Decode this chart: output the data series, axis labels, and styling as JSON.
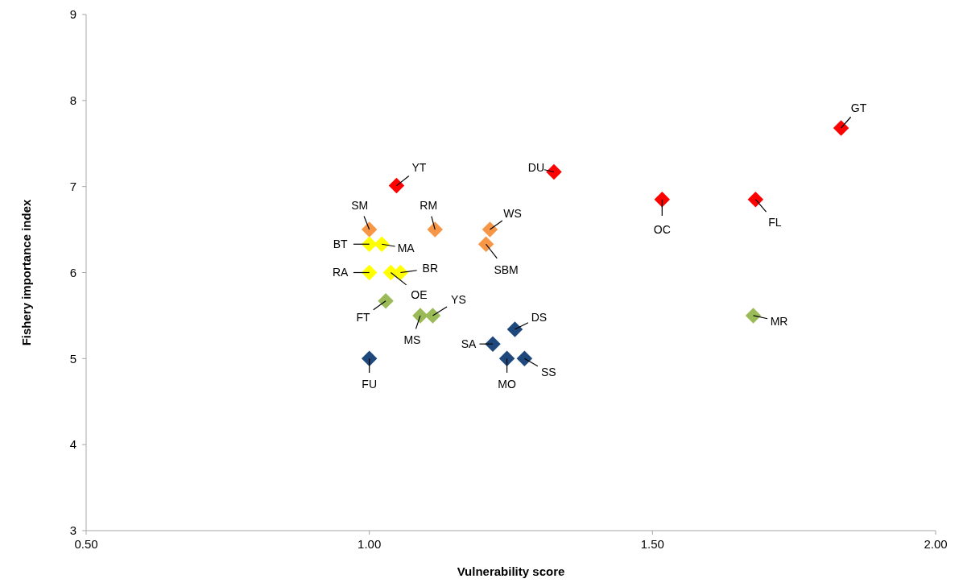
{
  "chart_data": {
    "type": "scatter",
    "xlabel": "Vulnerability score",
    "ylabel": "Fishery importance index",
    "marker": "diamond",
    "grid": false,
    "xlim": [
      0.5,
      2.0
    ],
    "xticks": [
      {
        "value": 0.5,
        "label": "0.50"
      },
      {
        "value": 1.0,
        "label": "1.00"
      },
      {
        "value": 1.5,
        "label": "1.50"
      },
      {
        "value": 2.0,
        "label": "2.00"
      }
    ],
    "ylim": [
      3,
      9
    ],
    "yticks": [
      3,
      4,
      5,
      6,
      7,
      8,
      9
    ],
    "series": [
      {
        "color": "#ff0000",
        "x": [
          1.048,
          1.326,
          1.517,
          1.682,
          1.833
        ],
        "values": [
          7.01,
          7.17,
          6.85,
          6.85,
          7.68
        ]
      },
      {
        "color": "#f79646",
        "x": [
          1.0,
          1.116,
          1.213,
          1.206
        ],
        "values": [
          6.5,
          6.5,
          6.5,
          6.33
        ]
      },
      {
        "color": "#ffff00",
        "x": [
          1.0,
          1.022,
          1.0,
          1.038,
          1.055
        ],
        "values": [
          6.33,
          6.33,
          6.0,
          6.0,
          6.0
        ]
      },
      {
        "color": "#9bbb59",
        "x": [
          1.029,
          1.09,
          1.112,
          1.678
        ],
        "values": [
          5.67,
          5.5,
          5.5,
          5.5
        ]
      },
      {
        "color": "#1f497d",
        "x": [
          1.0,
          1.218,
          1.257,
          1.243,
          1.274
        ],
        "values": [
          5.0,
          5.17,
          5.34,
          5.0,
          5.0
        ]
      }
    ],
    "annotations": [
      {
        "text": "YT",
        "x": 1.048,
        "y": 7.01
      },
      {
        "text": "DU",
        "x": 1.326,
        "y": 7.17
      },
      {
        "text": "OC",
        "x": 1.517,
        "y": 6.85
      },
      {
        "text": "FL",
        "x": 1.682,
        "y": 6.85
      },
      {
        "text": "GT",
        "x": 1.833,
        "y": 7.68
      },
      {
        "text": "SM",
        "x": 1.0,
        "y": 6.5
      },
      {
        "text": "RM",
        "x": 1.116,
        "y": 6.5
      },
      {
        "text": "WS",
        "x": 1.213,
        "y": 6.5
      },
      {
        "text": "SBM",
        "x": 1.206,
        "y": 6.33
      },
      {
        "text": "BT",
        "x": 1.0,
        "y": 6.33
      },
      {
        "text": "MA",
        "x": 1.022,
        "y": 6.33
      },
      {
        "text": "RA",
        "x": 1.0,
        "y": 6.0
      },
      {
        "text": "OE",
        "x": 1.038,
        "y": 6.0
      },
      {
        "text": "BR",
        "x": 1.055,
        "y": 6.0
      },
      {
        "text": "FT",
        "x": 1.029,
        "y": 5.67
      },
      {
        "text": "MS",
        "x": 1.09,
        "y": 5.5
      },
      {
        "text": "YS",
        "x": 1.112,
        "y": 5.5
      },
      {
        "text": "MR",
        "x": 1.678,
        "y": 5.5
      },
      {
        "text": "FU",
        "x": 1.0,
        "y": 5.0
      },
      {
        "text": "SA",
        "x": 1.218,
        "y": 5.17
      },
      {
        "text": "DS",
        "x": 1.257,
        "y": 5.34
      },
      {
        "text": "MO",
        "x": 1.243,
        "y": 5.0
      },
      {
        "text": "SS",
        "x": 1.274,
        "y": 5.0
      }
    ]
  }
}
